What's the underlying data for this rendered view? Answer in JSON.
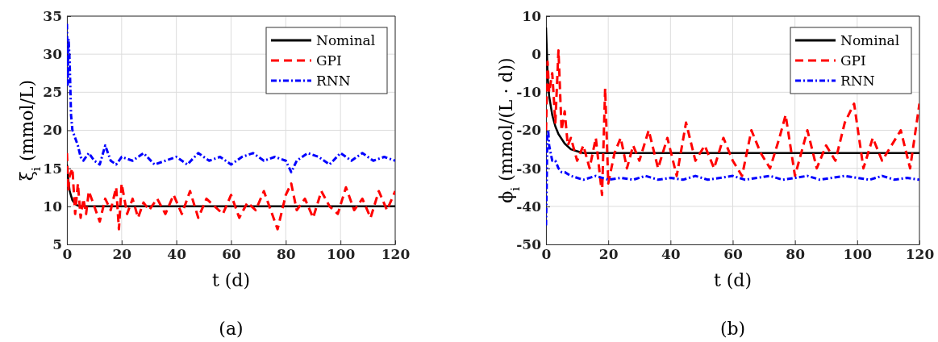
{
  "chart_data": [
    {
      "type": "line",
      "title": "(a)",
      "xlabel": "t (d)",
      "ylabel": "ξ$_{i}$ (mmol/L)",
      "xlim": [
        0,
        120
      ],
      "xticks": [
        0,
        20,
        40,
        60,
        80,
        100,
        120
      ],
      "ylim": [
        5,
        35
      ],
      "yticks": [
        5,
        10,
        15,
        20,
        25,
        30,
        35
      ],
      "grid": true,
      "legend": "top right",
      "series": [
        {
          "name": "Nominal",
          "color": "#000000",
          "line_style": "solid",
          "x": [
            0,
            0.5,
            1,
            2,
            3,
            4,
            5,
            6,
            8,
            10,
            120
          ],
          "values": [
            15.5,
            13.5,
            12,
            10.8,
            10.3,
            10.1,
            10,
            10,
            10,
            10,
            10
          ]
        },
        {
          "name": "GPI",
          "color": "#ff0000",
          "line_style": "dashed",
          "x": [
            0,
            0.5,
            1,
            2,
            3,
            4,
            5,
            6,
            7,
            8,
            10,
            12,
            14,
            16,
            18,
            19,
            20,
            22,
            24,
            26,
            28,
            30,
            33,
            36,
            39,
            42,
            45,
            48,
            51,
            54,
            57,
            60,
            63,
            66,
            69,
            72,
            75,
            77,
            80,
            82,
            84,
            87,
            90,
            93,
            96,
            99,
            102,
            105,
            108,
            111,
            114,
            117,
            120
          ],
          "values": [
            17,
            12,
            14,
            15,
            9,
            13,
            8.5,
            11,
            9,
            12,
            10,
            8,
            11,
            9.5,
            12.5,
            7,
            13,
            9,
            11,
            8.5,
            10.5,
            9.5,
            11,
            9,
            11.5,
            9,
            12,
            8.5,
            11,
            10,
            9,
            11.5,
            8.5,
            10.5,
            9.5,
            12,
            9,
            7,
            11.5,
            13,
            9.5,
            11,
            8.5,
            12,
            10,
            9,
            12.5,
            9.5,
            11,
            8.5,
            12,
            9.5,
            12
          ]
        },
        {
          "name": "RNN",
          "color": "#0000ff",
          "line_style": "dotted",
          "x": [
            0,
            0.3,
            0.6,
            1,
            1.5,
            2,
            3,
            4,
            5,
            6,
            8,
            10,
            12,
            14,
            16,
            18,
            20,
            24,
            28,
            32,
            36,
            40,
            44,
            48,
            52,
            56,
            60,
            64,
            68,
            72,
            76,
            80,
            82,
            84,
            88,
            92,
            96,
            100,
            104,
            108,
            112,
            116,
            120
          ],
          "values": [
            34,
            26,
            32,
            29,
            22,
            20,
            19,
            18,
            16.5,
            16,
            17,
            16,
            15.5,
            18,
            16,
            15.5,
            16.5,
            16,
            17,
            15.5,
            16,
            16.5,
            15.5,
            17,
            16,
            16.5,
            15.5,
            16.5,
            17,
            16,
            16.5,
            16,
            14.5,
            16,
            17,
            16.5,
            15.5,
            17,
            16,
            17,
            16,
            16.5,
            16
          ]
        }
      ]
    },
    {
      "type": "line",
      "title": "(b)",
      "xlabel": "t (d)",
      "ylabel": "ϕ$_{i}$ (mmol/(L · d))",
      "xlim": [
        0,
        120
      ],
      "xticks": [
        0,
        20,
        40,
        60,
        80,
        100,
        120
      ],
      "ylim": [
        -50,
        10
      ],
      "yticks": [
        -50,
        -40,
        -30,
        -20,
        -10,
        0,
        10
      ],
      "grid": true,
      "legend": "top right",
      "series": [
        {
          "name": "Nominal",
          "color": "#000000",
          "line_style": "solid",
          "x": [
            0,
            0.3,
            0.6,
            1,
            2,
            3,
            4,
            6,
            8,
            10,
            12,
            120
          ],
          "values": [
            7,
            0,
            -7,
            -11,
            -16,
            -19,
            -21,
            -23.5,
            -25,
            -25.5,
            -26,
            -26
          ]
        },
        {
          "name": "GPI",
          "color": "#ff0000",
          "line_style": "dashed",
          "x": [
            0,
            0.5,
            1,
            2,
            3,
            4,
            5,
            6,
            7,
            8,
            10,
            12,
            14,
            16,
            18,
            19,
            20,
            22,
            24,
            26,
            28,
            30,
            33,
            36,
            39,
            42,
            45,
            48,
            51,
            54,
            57,
            60,
            63,
            66,
            69,
            72,
            75,
            77,
            80,
            82,
            84,
            87,
            90,
            93,
            96,
            99,
            102,
            105,
            108,
            111,
            114,
            117,
            120
          ],
          "values": [
            -20,
            -2,
            -10,
            -5,
            -18,
            1,
            -20,
            -15,
            -24,
            -22,
            -28,
            -24,
            -30,
            -22,
            -37,
            -9,
            -34,
            -26,
            -22,
            -30,
            -24,
            -28,
            -20,
            -30,
            -22,
            -32,
            -18,
            -28,
            -24,
            -30,
            -22,
            -28,
            -32,
            -20,
            -26,
            -30,
            -22,
            -16,
            -32,
            -26,
            -20,
            -30,
            -24,
            -28,
            -18,
            -13,
            -30,
            -22,
            -28,
            -24,
            -20,
            -30,
            -13
          ]
        },
        {
          "name": "RNN",
          "color": "#0000ff",
          "line_style": "dotted",
          "x": [
            0,
            0.2,
            0.4,
            0.7,
            1,
            1.5,
            2,
            3,
            4,
            5,
            6,
            8,
            10,
            12,
            16,
            20,
            24,
            28,
            32,
            36,
            40,
            44,
            48,
            52,
            56,
            60,
            64,
            68,
            72,
            76,
            80,
            84,
            88,
            92,
            96,
            100,
            104,
            108,
            112,
            116,
            120
          ],
          "values": [
            -45,
            -35,
            -22,
            -20,
            -24,
            -26,
            -28,
            -28,
            -30,
            -31,
            -31,
            -32,
            -32.5,
            -33,
            -32,
            -33,
            -32.5,
            -33,
            -32,
            -33,
            -32.5,
            -33,
            -32,
            -33,
            -32.5,
            -32,
            -33,
            -32.5,
            -32,
            -33,
            -32.5,
            -32,
            -33,
            -32.5,
            -32,
            -32.5,
            -33,
            -32,
            -33,
            -32.5,
            -33
          ]
        }
      ]
    }
  ]
}
